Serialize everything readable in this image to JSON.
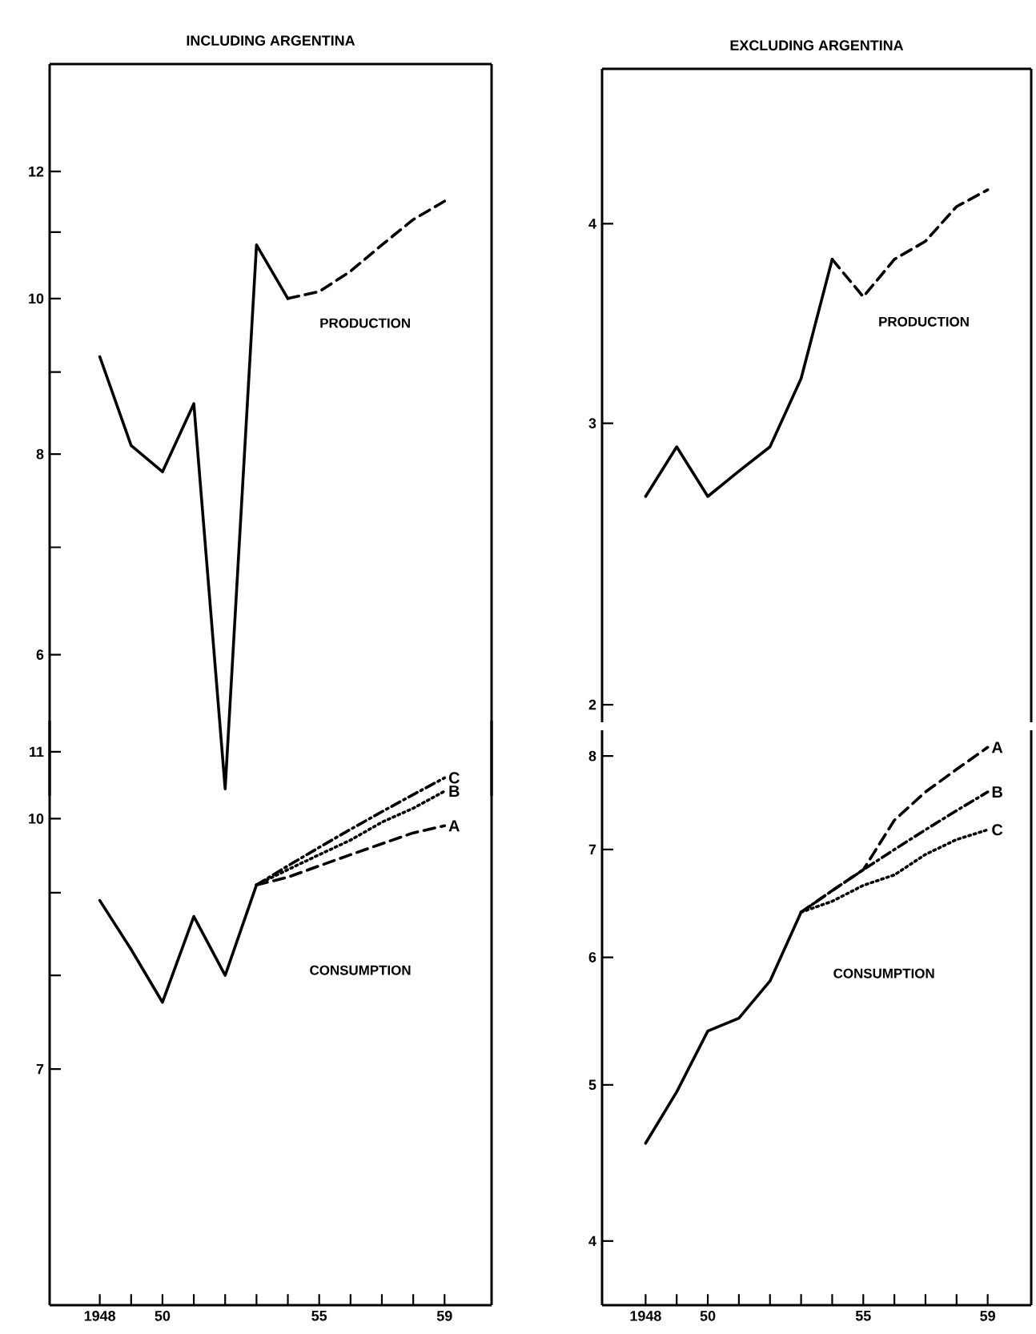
{
  "chart_data": [
    {
      "type": "line",
      "title": "INCLUDING ARGENTINA",
      "log": "y",
      "tick_labels": "y",
      "xlim": [
        1946.4,
        1960.5
      ],
      "ylim": [
        4.9,
        14
      ],
      "yticks": [
        6,
        {
          "value": 7,
          "label": null
        },
        8,
        {
          "value": 9,
          "label": null
        },
        10,
        {
          "value": 11,
          "label": null
        },
        12
      ],
      "annotations": [
        "PRODUCTION"
      ],
      "series": [
        {
          "color": "#000000",
          "line_style": "solid",
          "x": [
            1948,
            1949,
            1950,
            1951,
            1952,
            1953,
            1954
          ],
          "values": [
            9.2,
            8.1,
            7.8,
            8.6,
            4.95,
            10.8,
            10.0
          ]
        },
        {
          "color": "#000000",
          "line_style": "dashed",
          "x": [
            1954,
            1955,
            1956,
            1957,
            1958,
            1959
          ],
          "values": [
            10.0,
            10.1,
            10.4,
            10.8,
            11.2,
            11.5
          ]
        }
      ]
    },
    {
      "type": "line",
      "log": "y",
      "xlim": [
        1946.4,
        1960.5
      ],
      "ylim": [
        5,
        11.5
      ],
      "xticks": [
        1948,
        {
          "value": 1949,
          "label": null
        },
        {
          "value": 1950,
          "label": "50"
        },
        {
          "value": 1951,
          "label": null
        },
        {
          "value": 1952,
          "label": null
        },
        {
          "value": 1953,
          "label": null
        },
        {
          "value": 1954,
          "label": null
        },
        {
          "value": 1955,
          "label": "55"
        },
        {
          "value": 1956,
          "label": null
        },
        {
          "value": 1957,
          "label": null
        },
        {
          "value": 1958,
          "label": null
        },
        {
          "value": 1959,
          "label": "59"
        }
      ],
      "yticks": [
        7,
        {
          "value": 8,
          "label": null
        },
        {
          "value": 9,
          "label": null
        },
        10,
        11
      ],
      "annotations": [
        "CONSUMPTION"
      ],
      "series": [
        {
          "color": "#000000",
          "line_style": "solid",
          "x": [
            1948,
            1949,
            1950,
            1951,
            1952,
            1953
          ],
          "values": [
            8.9,
            8.3,
            7.7,
            8.7,
            8.0,
            9.1
          ]
        },
        {
          "name": "C",
          "color": "#000000",
          "line_style": "dashdotted",
          "x": [
            1953,
            1954,
            1955,
            1956,
            1957,
            1958,
            1959
          ],
          "values": [
            9.1,
            9.35,
            9.6,
            9.85,
            10.1,
            10.35,
            10.6
          ]
        },
        {
          "name": "B",
          "color": "#000000",
          "line_style": "dotted",
          "x": [
            1953,
            1954,
            1955,
            1956,
            1957,
            1958,
            1959
          ],
          "values": [
            9.1,
            9.3,
            9.5,
            9.7,
            9.95,
            10.15,
            10.4
          ]
        },
        {
          "name": "A",
          "color": "#000000",
          "line_style": "dashed",
          "x": [
            1953,
            1954,
            1955,
            1956,
            1957,
            1958,
            1959
          ],
          "values": [
            9.1,
            9.2,
            9.35,
            9.5,
            9.65,
            9.8,
            9.9
          ]
        }
      ]
    },
    {
      "type": "line",
      "title": "EXCLUDING ARGENTINA",
      "log": "y",
      "tick_labels": "y",
      "xlim": [
        1946.6,
        1960.4
      ],
      "ylim": [
        1.95,
        5
      ],
      "yticks": [
        2,
        3,
        4
      ],
      "annotations": [
        "PRODUCTION"
      ],
      "series": [
        {
          "color": "#000000",
          "line_style": "solid",
          "x": [
            1948,
            1949,
            1950,
            1951,
            1952,
            1953,
            1954
          ],
          "values": [
            2.7,
            2.9,
            2.7,
            2.8,
            2.9,
            3.2,
            3.8
          ]
        },
        {
          "color": "#000000",
          "line_style": "dashed",
          "x": [
            1954,
            1955,
            1956,
            1957,
            1958,
            1959
          ],
          "values": [
            3.8,
            3.6,
            3.8,
            3.9,
            4.1,
            4.2
          ]
        }
      ]
    },
    {
      "type": "line",
      "log": "y",
      "xlim": [
        1946.6,
        1960.4
      ],
      "ylim": [
        3.65,
        8.3
      ],
      "xticks": [
        1948,
        {
          "value": 1949,
          "label": null
        },
        {
          "value": 1950,
          "label": "50"
        },
        {
          "value": 1951,
          "label": null
        },
        {
          "value": 1952,
          "label": null
        },
        {
          "value": 1953,
          "label": null
        },
        {
          "value": 1954,
          "label": null
        },
        {
          "value": 1955,
          "label": "55"
        },
        {
          "value": 1956,
          "label": null
        },
        {
          "value": 1957,
          "label": null
        },
        {
          "value": 1958,
          "label": null
        },
        {
          "value": 1959,
          "label": "59"
        }
      ],
      "yticks": [
        4,
        5,
        6,
        7,
        8
      ],
      "annotations": [
        "CONSUMPTION"
      ],
      "series": [
        {
          "color": "#000000",
          "line_style": "solid",
          "x": [
            1948,
            1949,
            1950,
            1951,
            1952,
            1953
          ],
          "values": [
            4.6,
            4.95,
            5.4,
            5.5,
            5.8,
            6.4
          ]
        },
        {
          "name": "A",
          "color": "#000000",
          "line_style": "dashed",
          "x": [
            1953,
            1954,
            1955,
            1956,
            1957,
            1958,
            1959
          ],
          "values": [
            6.4,
            6.6,
            6.8,
            7.3,
            7.6,
            7.85,
            8.1
          ]
        },
        {
          "name": "B",
          "color": "#000000",
          "line_style": "dashdotted",
          "x": [
            1953,
            1954,
            1955,
            1956,
            1957,
            1958,
            1959
          ],
          "values": [
            6.4,
            6.6,
            6.8,
            7.0,
            7.2,
            7.4,
            7.6
          ]
        },
        {
          "name": "C",
          "color": "#000000",
          "line_style": "dotted",
          "x": [
            1953,
            1954,
            1955,
            1956,
            1957,
            1958,
            1959
          ],
          "values": [
            6.4,
            6.5,
            6.65,
            6.75,
            6.95,
            7.1,
            7.2
          ]
        }
      ]
    }
  ]
}
